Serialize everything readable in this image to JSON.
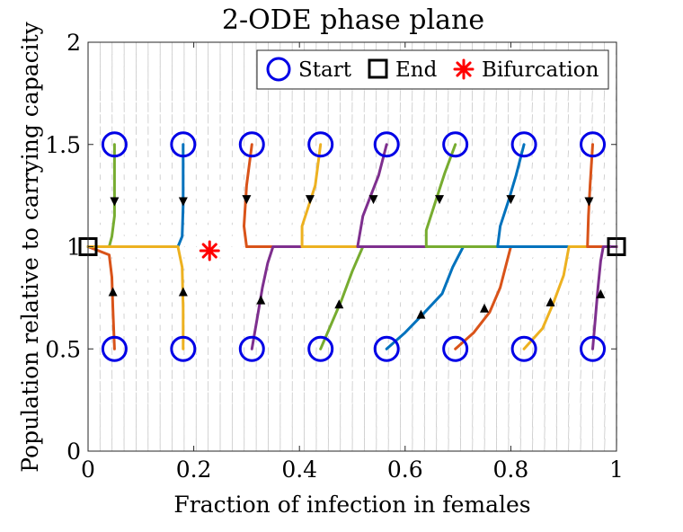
{
  "chart_data": {
    "type": "line",
    "title": "2-ODE phase plane",
    "xlabel": "Fraction of infection in females",
    "ylabel": "Population relative to carrying capacity",
    "xlim": [
      0,
      1
    ],
    "ylim": [
      0,
      2
    ],
    "xticks": [
      "0",
      "0.2",
      "0.4",
      "0.6",
      "0.8",
      "1"
    ],
    "yticks": [
      "0",
      "0.5",
      "1",
      "1.5",
      "2"
    ],
    "grid": false,
    "legend_position": "top-right",
    "legend": [
      {
        "label": "Start",
        "marker": "circle",
        "color": "#0000e6"
      },
      {
        "label": "End",
        "marker": "square",
        "color": "#000000"
      },
      {
        "label": "Bifurcation",
        "marker": "asterisk",
        "color": "#ff0000"
      }
    ],
    "quiver_color": "#c8c8c8",
    "end_points": [
      [
        0,
        1
      ],
      [
        1,
        1
      ]
    ],
    "bifurcation_point": [
      0.23,
      0.98
    ],
    "trajectories": [
      {
        "color": "#77ac30",
        "start": [
          0.05,
          1.5
        ],
        "points": [
          [
            0.05,
            1.5
          ],
          [
            0.05,
            1.25
          ],
          [
            0.05,
            1.15
          ],
          [
            0.045,
            1.05
          ],
          [
            0.04,
            1.0
          ],
          [
            0,
            1
          ]
        ]
      },
      {
        "color": "#d95319",
        "start": [
          0.05,
          0.5
        ],
        "points": [
          [
            0.05,
            0.5
          ],
          [
            0.047,
            0.7
          ],
          [
            0.045,
            0.85
          ],
          [
            0.04,
            0.96
          ],
          [
            0,
            1
          ]
        ]
      },
      {
        "color": "#0072bd",
        "start": [
          0.18,
          1.5
        ],
        "points": [
          [
            0.18,
            1.5
          ],
          [
            0.18,
            1.2
          ],
          [
            0.178,
            1.05
          ],
          [
            0.17,
            1.0
          ],
          [
            0,
            1
          ]
        ]
      },
      {
        "color": "#edb120",
        "start": [
          0.18,
          0.5
        ],
        "points": [
          [
            0.18,
            0.5
          ],
          [
            0.18,
            0.7
          ],
          [
            0.178,
            0.9
          ],
          [
            0.17,
            1.0
          ],
          [
            0,
            1
          ]
        ]
      },
      {
        "color": "#d95319",
        "start": [
          0.31,
          1.5
        ],
        "points": [
          [
            0.31,
            1.5
          ],
          [
            0.3,
            1.3
          ],
          [
            0.295,
            1.1
          ],
          [
            0.3,
            1.0
          ],
          [
            1,
            1
          ]
        ]
      },
      {
        "color": "#7e2f8e",
        "start": [
          0.31,
          0.5
        ],
        "points": [
          [
            0.31,
            0.5
          ],
          [
            0.32,
            0.65
          ],
          [
            0.33,
            0.8
          ],
          [
            0.34,
            0.92
          ],
          [
            0.35,
            1.0
          ],
          [
            1,
            1
          ]
        ]
      },
      {
        "color": "#edb120",
        "start": [
          0.44,
          1.5
        ],
        "points": [
          [
            0.44,
            1.5
          ],
          [
            0.43,
            1.3
          ],
          [
            0.415,
            1.18
          ],
          [
            0.405,
            1.1
          ],
          [
            0.405,
            1.0
          ],
          [
            1,
            1
          ]
        ]
      },
      {
        "color": "#77ac30",
        "start": [
          0.44,
          0.5
        ],
        "points": [
          [
            0.44,
            0.5
          ],
          [
            0.46,
            0.62
          ],
          [
            0.48,
            0.74
          ],
          [
            0.5,
            0.88
          ],
          [
            0.52,
            1.0
          ],
          [
            1,
            1
          ]
        ]
      },
      {
        "color": "#7e2f8e",
        "start": [
          0.565,
          1.5
        ],
        "points": [
          [
            0.565,
            1.5
          ],
          [
            0.55,
            1.35
          ],
          [
            0.535,
            1.25
          ],
          [
            0.52,
            1.15
          ],
          [
            0.51,
            1.0
          ],
          [
            1,
            1
          ]
        ]
      },
      {
        "color": "#0072bd",
        "start": [
          0.565,
          0.5
        ],
        "points": [
          [
            0.565,
            0.5
          ],
          [
            0.6,
            0.58
          ],
          [
            0.63,
            0.66
          ],
          [
            0.67,
            0.77
          ],
          [
            0.69,
            0.9
          ],
          [
            0.71,
            1.0
          ],
          [
            1,
            1
          ]
        ]
      },
      {
        "color": "#77ac30",
        "start": [
          0.695,
          1.5
        ],
        "points": [
          [
            0.695,
            1.5
          ],
          [
            0.675,
            1.36
          ],
          [
            0.655,
            1.2
          ],
          [
            0.64,
            1.08
          ],
          [
            0.64,
            1.0
          ],
          [
            1,
            1
          ]
        ]
      },
      {
        "color": "#d95319",
        "start": [
          0.695,
          0.5
        ],
        "points": [
          [
            0.695,
            0.5
          ],
          [
            0.73,
            0.58
          ],
          [
            0.76,
            0.68
          ],
          [
            0.78,
            0.8
          ],
          [
            0.8,
            1.0
          ],
          [
            1,
            1
          ]
        ]
      },
      {
        "color": "#0072bd",
        "start": [
          0.825,
          1.5
        ],
        "points": [
          [
            0.825,
            1.5
          ],
          [
            0.81,
            1.35
          ],
          [
            0.795,
            1.22
          ],
          [
            0.78,
            1.1
          ],
          [
            0.775,
            1.0
          ],
          [
            1,
            1
          ]
        ]
      },
      {
        "color": "#edb120",
        "start": [
          0.825,
          0.5
        ],
        "points": [
          [
            0.825,
            0.5
          ],
          [
            0.86,
            0.6
          ],
          [
            0.88,
            0.72
          ],
          [
            0.9,
            0.86
          ],
          [
            0.91,
            1.0
          ],
          [
            1,
            1
          ]
        ]
      },
      {
        "color": "#d95319",
        "start": [
          0.955,
          1.5
        ],
        "points": [
          [
            0.955,
            1.5
          ],
          [
            0.95,
            1.3
          ],
          [
            0.947,
            1.15
          ],
          [
            0.945,
            1.0
          ],
          [
            1,
            1
          ]
        ]
      },
      {
        "color": "#7e2f8e",
        "start": [
          0.955,
          0.5
        ],
        "points": [
          [
            0.955,
            0.5
          ],
          [
            0.96,
            0.65
          ],
          [
            0.965,
            0.8
          ],
          [
            0.97,
            0.93
          ],
          [
            0.975,
            1.0
          ],
          [
            1,
            1
          ]
        ]
      }
    ],
    "arrows": [
      {
        "x": 0.05,
        "y": 1.22,
        "dir": "down"
      },
      {
        "x": 0.18,
        "y": 1.22,
        "dir": "down"
      },
      {
        "x": 0.3,
        "y": 1.23,
        "dir": "down"
      },
      {
        "x": 0.42,
        "y": 1.23,
        "dir": "down"
      },
      {
        "x": 0.54,
        "y": 1.23,
        "dir": "down"
      },
      {
        "x": 0.665,
        "y": 1.23,
        "dir": "down"
      },
      {
        "x": 0.8,
        "y": 1.23,
        "dir": "down"
      },
      {
        "x": 0.948,
        "y": 1.22,
        "dir": "down"
      },
      {
        "x": 0.047,
        "y": 0.78,
        "dir": "up"
      },
      {
        "x": 0.18,
        "y": 0.78,
        "dir": "up"
      },
      {
        "x": 0.327,
        "y": 0.74,
        "dir": "up"
      },
      {
        "x": 0.475,
        "y": 0.72,
        "dir": "up"
      },
      {
        "x": 0.63,
        "y": 0.67,
        "dir": "up"
      },
      {
        "x": 0.75,
        "y": 0.7,
        "dir": "up"
      },
      {
        "x": 0.875,
        "y": 0.73,
        "dir": "up"
      },
      {
        "x": 0.97,
        "y": 0.77,
        "dir": "up"
      }
    ]
  }
}
